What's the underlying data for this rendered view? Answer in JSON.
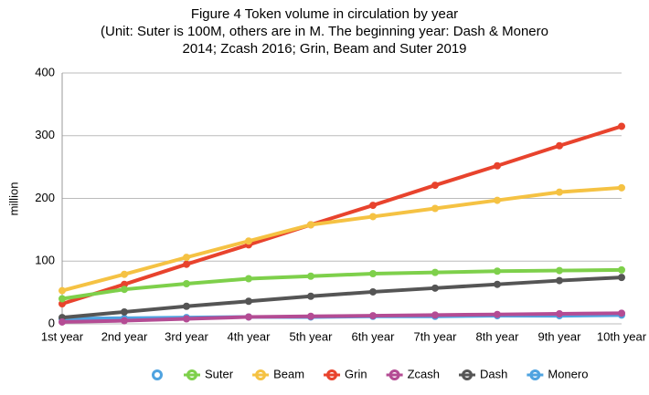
{
  "chart_data": {
    "type": "line",
    "title": [
      "Figure 4 Token volume in circulation by year",
      "(Unit: Suter is 100M, others are in M.  The beginning year: Dash & Monero",
      "2014; Zcash 2016; Grin, Beam and Suter 2019"
    ],
    "ylabel": "million",
    "categories": [
      "1st year",
      "2nd year",
      "3rd year",
      "4th year",
      "5th year",
      "6th year",
      "7th year",
      "8th year",
      "9th year",
      "10th year"
    ],
    "ylim": [
      0,
      400
    ],
    "yticks": [
      0,
      100,
      200,
      300,
      400
    ],
    "grid": true,
    "legend": "bottom",
    "series": [
      {
        "name": "Suter",
        "color": "#7ed04b",
        "values": [
          40,
          55,
          64,
          72,
          76,
          80,
          82,
          84,
          85,
          86
        ]
      },
      {
        "name": "Beam",
        "color": "#f5c243",
        "values": [
          53,
          79,
          106,
          132,
          158,
          171,
          184,
          197,
          210,
          217
        ]
      },
      {
        "name": "Grin",
        "color": "#e8432d",
        "values": [
          32,
          63,
          95,
          126,
          158,
          189,
          221,
          252,
          284,
          315
        ]
      },
      {
        "name": "Zcash",
        "color": "#b44c94",
        "values": [
          3,
          5,
          8,
          11,
          12,
          13,
          14,
          15,
          16,
          17
        ]
      },
      {
        "name": "Dash",
        "color": "#555555",
        "values": [
          10,
          19,
          28,
          36,
          44,
          51,
          57,
          63,
          69,
          74
        ]
      },
      {
        "name": "Monero",
        "color": "#4fa3e0",
        "values": [
          8,
          9,
          10,
          11,
          11,
          12,
          12,
          13,
          13,
          14
        ]
      }
    ]
  }
}
